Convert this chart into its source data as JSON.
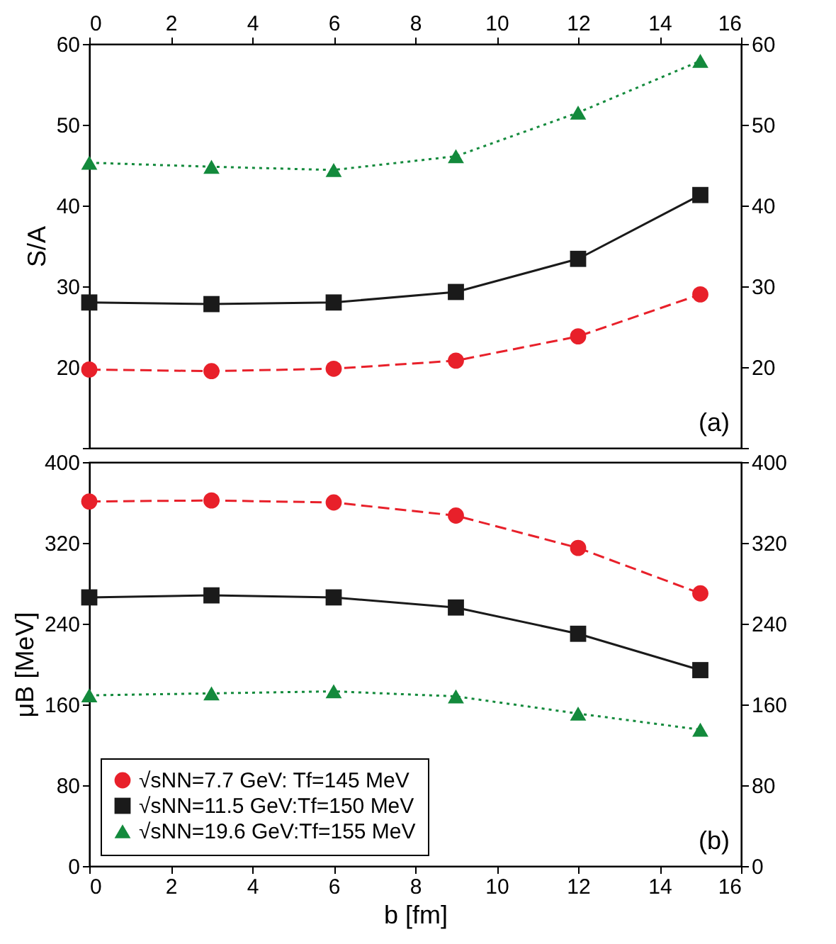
{
  "chart_data": [
    {
      "type": "line",
      "ylabel": "S/A",
      "x": [
        0,
        3,
        6,
        9,
        12,
        15
      ],
      "xlim": [
        0,
        16
      ],
      "xticks": [
        0,
        2,
        4,
        6,
        8,
        10,
        12,
        14,
        16
      ],
      "x2lim": [
        0,
        16
      ],
      "x2ticks": [
        0,
        2,
        4,
        6,
        8,
        10,
        12,
        14,
        16
      ],
      "ylim": [
        10,
        60
      ],
      "yticks": [
        {
          "value": 10,
          "label": null
        },
        20,
        30,
        40,
        50,
        60
      ],
      "y2lim": [
        10,
        60
      ],
      "y2ticks": [
        {
          "value": 10,
          "label": null
        },
        20,
        30,
        40,
        50,
        60
      ],
      "tick_labels": "y",
      "annotations": [
        "(a)"
      ],
      "series": [
        {
          "color": "#e8202a",
          "marker": "circle",
          "line_style": "dashed",
          "values": [
            19.7,
            19.5,
            19.8,
            20.8,
            23.8,
            29.0
          ]
        },
        {
          "color": "#1a1a1a",
          "marker": "square",
          "line_style": "solid",
          "values": [
            28.0,
            27.8,
            28.0,
            29.3,
            33.4,
            41.3
          ]
        },
        {
          "color": "#138a3c",
          "marker": "triangle",
          "line_style": "dotted",
          "values": [
            45.3,
            44.8,
            44.4,
            46.1,
            51.5,
            57.9
          ]
        }
      ]
    },
    {
      "type": "line",
      "xlabel": "b [fm]",
      "ylabel": "μB [MeV]",
      "x": [
        0,
        3,
        6,
        9,
        12,
        15
      ],
      "xlim": [
        0,
        16
      ],
      "xticks": [
        0,
        2,
        4,
        6,
        8,
        10,
        12,
        14,
        16
      ],
      "ylim": [
        0,
        400
      ],
      "yticks": [
        0,
        80,
        160,
        240,
        320,
        400
      ],
      "y2lim": [
        0,
        400
      ],
      "y2ticks": [
        0,
        80,
        160,
        240,
        320,
        400
      ],
      "legend": "bottom left",
      "annotations": [
        "(b)"
      ],
      "series": [
        {
          "name": "√sNN=7.7 GeV: Tf=145 MeV",
          "color": "#e8202a",
          "marker": "circle",
          "line_style": "dashed",
          "values": [
            361,
            362,
            360,
            347,
            315,
            270
          ]
        },
        {
          "name": "√sNN=11.5 GeV:Tf=150 MeV",
          "color": "#1a1a1a",
          "marker": "square",
          "line_style": "solid",
          "values": [
            266,
            268,
            266,
            256,
            230,
            194
          ]
        },
        {
          "name": "√sNN=19.6 GeV:Tf=155 MeV",
          "color": "#138a3c",
          "marker": "triangle",
          "line_style": "dotted",
          "values": [
            169,
            171,
            173,
            168,
            151,
            135
          ]
        }
      ]
    }
  ]
}
